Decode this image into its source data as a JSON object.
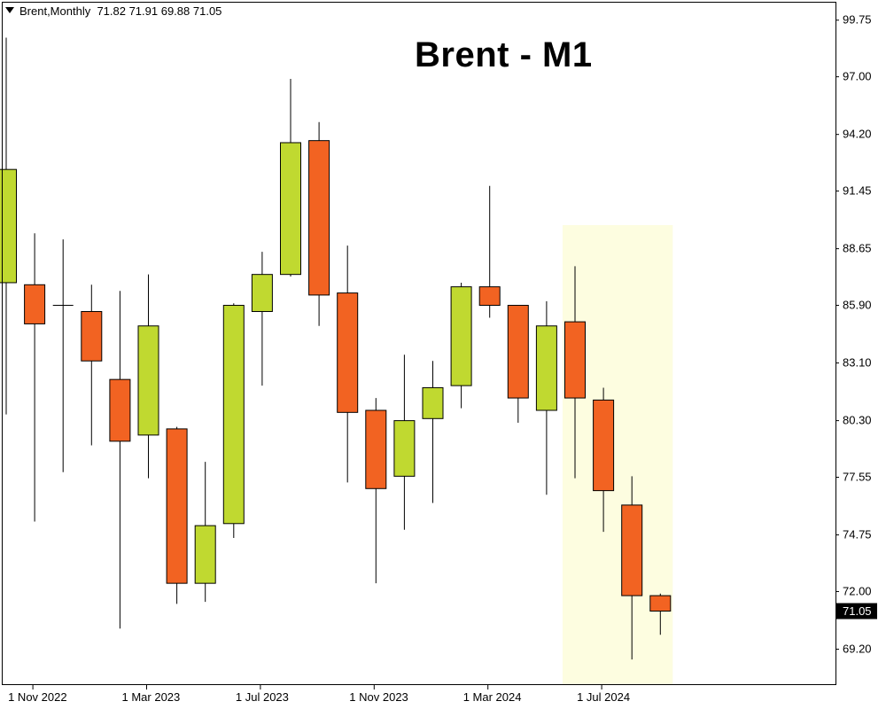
{
  "header": {
    "symbol": "Brent,Monthly",
    "ohlc": "71.82 71.91 69.88 71.05"
  },
  "title": "Brent - M1",
  "current_price_label": "71.05",
  "colors": {
    "bull": "#c0d930",
    "bear": "#f26322",
    "highlight": "#fdfde0",
    "price_tag": "#000000"
  },
  "chart_data": {
    "type": "candlestick",
    "y_ticks": [
      "99.75",
      "97.00",
      "94.20",
      "91.45",
      "88.65",
      "85.90",
      "83.10",
      "80.30",
      "77.55",
      "74.75",
      "72.00",
      "69.20"
    ],
    "x_ticks": [
      "1 Nov 2022",
      "1 Mar 2023",
      "1 Jul 2023",
      "1 Nov 2023",
      "1 Mar 2024",
      "1 Jul 2024"
    ],
    "ylim": [
      67.5,
      100.6
    ],
    "highlight_range": [
      "2024-06",
      "2024-09"
    ],
    "candles": [
      {
        "date": "2022-10",
        "open": 87.0,
        "high": 98.9,
        "low": 80.6,
        "close": 92.5
      },
      {
        "date": "2022-11",
        "open": 86.9,
        "high": 89.4,
        "low": 75.4,
        "close": 85.0
      },
      {
        "date": "2022-12",
        "open": 85.9,
        "high": 89.1,
        "low": 77.8,
        "close": 85.9
      },
      {
        "date": "2023-01",
        "open": 85.6,
        "high": 86.9,
        "low": 79.1,
        "close": 83.2
      },
      {
        "date": "2023-02",
        "open": 82.3,
        "high": 86.6,
        "low": 70.2,
        "close": 79.3
      },
      {
        "date": "2023-03",
        "open": 79.6,
        "high": 87.4,
        "low": 77.5,
        "close": 84.9
      },
      {
        "date": "2023-04",
        "open": 79.9,
        "high": 80.0,
        "low": 71.4,
        "close": 72.4
      },
      {
        "date": "2023-05",
        "open": 72.4,
        "high": 78.3,
        "low": 71.5,
        "close": 75.2
      },
      {
        "date": "2023-06",
        "open": 75.3,
        "high": 86.0,
        "low": 74.6,
        "close": 85.9
      },
      {
        "date": "2023-07",
        "open": 85.6,
        "high": 88.5,
        "low": 82.0,
        "close": 87.4
      },
      {
        "date": "2023-08",
        "open": 87.4,
        "high": 96.9,
        "low": 87.3,
        "close": 93.8
      },
      {
        "date": "2023-09",
        "open": 93.9,
        "high": 94.8,
        "low": 84.9,
        "close": 86.4
      },
      {
        "date": "2023-10",
        "open": 86.5,
        "high": 88.8,
        "low": 77.3,
        "close": 80.7
      },
      {
        "date": "2023-11",
        "open": 80.8,
        "high": 81.4,
        "low": 72.4,
        "close": 77.0
      },
      {
        "date": "2023-12",
        "open": 77.6,
        "high": 83.5,
        "low": 75.0,
        "close": 80.3
      },
      {
        "date": "2024-01",
        "open": 80.4,
        "high": 83.2,
        "low": 76.3,
        "close": 81.9
      },
      {
        "date": "2024-02",
        "open": 82.0,
        "high": 87.0,
        "low": 80.9,
        "close": 86.8
      },
      {
        "date": "2024-03",
        "open": 86.8,
        "high": 91.7,
        "low": 85.3,
        "close": 85.9
      },
      {
        "date": "2024-04",
        "open": 85.9,
        "high": 85.9,
        "low": 80.2,
        "close": 81.4
      },
      {
        "date": "2024-05",
        "open": 80.8,
        "high": 86.1,
        "low": 76.7,
        "close": 84.9
      },
      {
        "date": "2024-06",
        "open": 85.1,
        "high": 87.8,
        "low": 77.5,
        "close": 81.4
      },
      {
        "date": "2024-07",
        "open": 81.3,
        "high": 81.9,
        "low": 74.9,
        "close": 76.9
      },
      {
        "date": "2024-08",
        "open": 76.2,
        "high": 77.6,
        "low": 68.7,
        "close": 71.8
      },
      {
        "date": "2024-09",
        "open": 71.8,
        "high": 71.9,
        "low": 69.9,
        "close": 71.05
      }
    ]
  }
}
